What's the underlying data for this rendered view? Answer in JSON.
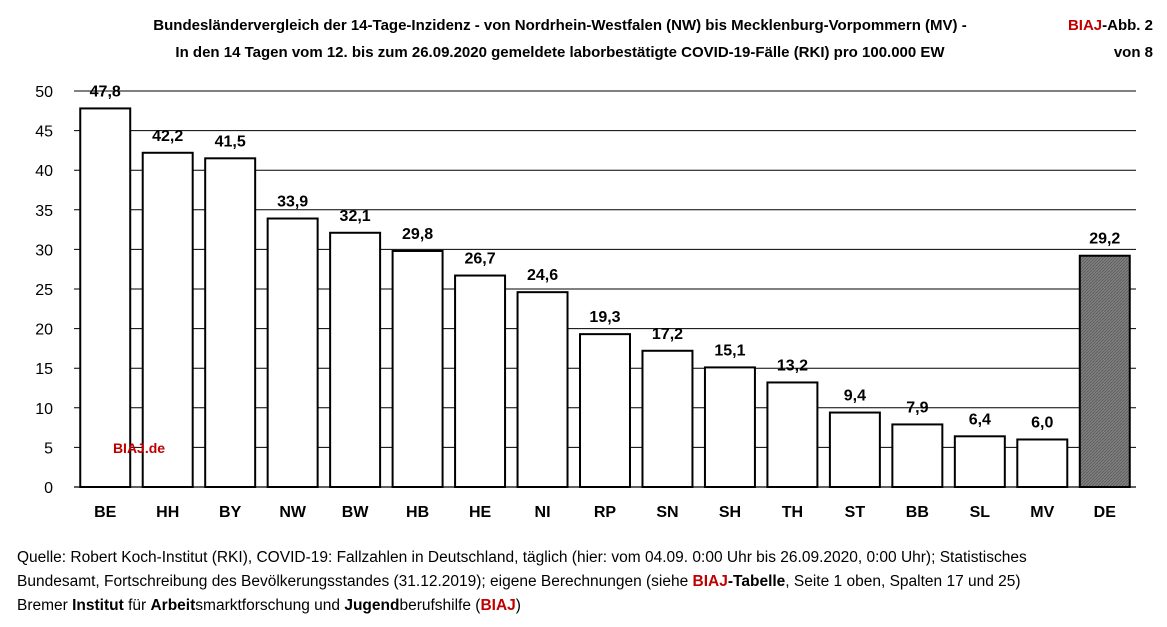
{
  "header": {
    "title_line1": "Bundesländervergleich der 14-Tage-Inzidenz - von Nordrhein-Westfalen (NW) bis Mecklenburg-Vorpommern (MV)  -",
    "title_line2": "In den 14 Tagen vom 12. bis zum 26.09.2020 gemeldete laborbestätigte COVID-19-Fälle (RKI) pro 100.000 EW",
    "badge_brand": "BIAJ",
    "badge_rest": "-Abb. 2",
    "badge_line2": "von 8"
  },
  "watermark": "BIAJ.de",
  "colors": {
    "brand": "#c00000",
    "highlight_fill": "#808080",
    "bar_fill": "#ffffff"
  },
  "chart_data": {
    "type": "bar",
    "title": "Bundesländervergleich der 14-Tage-Inzidenz",
    "categories": [
      "BE",
      "HH",
      "BY",
      "NW",
      "BW",
      "HB",
      "HE",
      "NI",
      "RP",
      "SN",
      "SH",
      "TH",
      "ST",
      "BB",
      "SL",
      "MV",
      "DE"
    ],
    "values": [
      47.8,
      42.2,
      41.5,
      33.9,
      32.1,
      29.8,
      26.7,
      24.6,
      19.3,
      17.2,
      15.1,
      13.2,
      9.4,
      7.9,
      6.4,
      6.0,
      29.2
    ],
    "value_labels": [
      "47,8",
      "42,2",
      "41,5",
      "33,9",
      "32,1",
      "29,8",
      "26,7",
      "24,6",
      "19,3",
      "17,2",
      "15,1",
      "13,2",
      "9,4",
      "7,9",
      "6,4",
      "6,0",
      "29,2"
    ],
    "highlight": [
      "DE"
    ],
    "ylim": [
      0,
      50
    ],
    "yticks": [
      0,
      5,
      10,
      15,
      20,
      25,
      30,
      35,
      40,
      45,
      50
    ],
    "grid": true,
    "xlabel": "",
    "ylabel": ""
  },
  "source": {
    "line1": "Quelle: Robert Koch-Institut (RKI), COVID-19: Fallzahlen in Deutschland, täglich (hier: vom 04.09. 0:00 Uhr bis 26.09.2020, 0:00 Uhr); Statistisches",
    "line2_a": "Bundesamt, Fortschreibung des Bevölkerungsstandes (31.12.2019); eigene Berechnungen (siehe ",
    "line2_brand": "BIAJ",
    "line2_b": "-Tabelle",
    "line2_c": ", Seite 1 oben, Spalten 17 und 25)",
    "line3_a": "Bremer ",
    "line3_b": "Institut",
    "line3_c": " für ",
    "line3_d": "Arbeit",
    "line3_e": "smarktforschung und ",
    "line3_f": "Jugend",
    "line3_g": "berufshilfe (",
    "line3_brand": "BIAJ",
    "line3_h": ")"
  }
}
